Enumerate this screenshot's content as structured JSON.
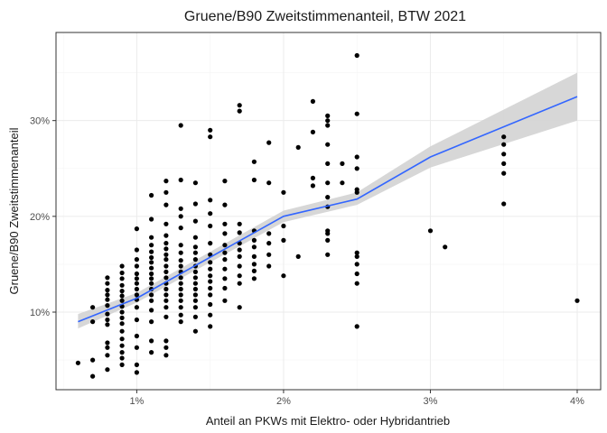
{
  "chart_data": {
    "type": "scatter",
    "title": "Gruene/B90 Zweitstimmenanteil, BTW 2021",
    "xlabel": "Anteil an PKWs mit Elektro- oder Hybridantrieb",
    "ylabel": "Gruene/B90 Zweitstimmenanteil",
    "xlim": [
      0.0045,
      0.0416
    ],
    "ylim": [
      0.019,
      0.392
    ],
    "xticks": [
      {
        "value": 0.01,
        "label": "1%"
      },
      {
        "value": 0.02,
        "label": "2%"
      },
      {
        "value": 0.03,
        "label": "3%"
      },
      {
        "value": 0.04,
        "label": "4%"
      }
    ],
    "yticks": [
      {
        "value": 0.1,
        "label": "10%"
      },
      {
        "value": 0.2,
        "label": "20%"
      },
      {
        "value": 0.3,
        "label": "30%"
      }
    ],
    "grid": true,
    "colors": {
      "points": "#000000",
      "trend_line": "#3366FF",
      "confidence_band": "#d3d3d3",
      "grid_major": "#ebebeb",
      "grid_minor": "#f5f5f5",
      "panel_border": "#333333"
    },
    "trend": {
      "method": "linear",
      "x": [
        0.006,
        0.01,
        0.02,
        0.025,
        0.03,
        0.04
      ],
      "y": [
        0.09,
        0.1145,
        0.2,
        0.218,
        0.262,
        0.325
      ],
      "ci_low": [
        0.083,
        0.11,
        0.194,
        0.212,
        0.251,
        0.3
      ],
      "ci_high": [
        0.098,
        0.12,
        0.206,
        0.225,
        0.273,
        0.35
      ]
    },
    "points": [
      [
        0.006,
        0.047
      ],
      [
        0.007,
        0.033
      ],
      [
        0.007,
        0.05
      ],
      [
        0.007,
        0.09
      ],
      [
        0.007,
        0.105
      ],
      [
        0.008,
        0.04
      ],
      [
        0.008,
        0.055
      ],
      [
        0.008,
        0.063
      ],
      [
        0.008,
        0.068
      ],
      [
        0.008,
        0.087
      ],
      [
        0.008,
        0.092
      ],
      [
        0.008,
        0.098
      ],
      [
        0.008,
        0.107
      ],
      [
        0.008,
        0.113
      ],
      [
        0.008,
        0.118
      ],
      [
        0.008,
        0.123
      ],
      [
        0.008,
        0.13
      ],
      [
        0.008,
        0.136
      ],
      [
        0.009,
        0.045
      ],
      [
        0.009,
        0.052
      ],
      [
        0.009,
        0.058
      ],
      [
        0.009,
        0.065
      ],
      [
        0.009,
        0.072
      ],
      [
        0.009,
        0.08
      ],
      [
        0.009,
        0.088
      ],
      [
        0.009,
        0.094
      ],
      [
        0.009,
        0.1
      ],
      [
        0.009,
        0.106
      ],
      [
        0.009,
        0.112
      ],
      [
        0.009,
        0.117
      ],
      [
        0.009,
        0.122
      ],
      [
        0.009,
        0.128
      ],
      [
        0.009,
        0.135
      ],
      [
        0.009,
        0.141
      ],
      [
        0.009,
        0.148
      ],
      [
        0.01,
        0.037
      ],
      [
        0.01,
        0.045
      ],
      [
        0.01,
        0.063
      ],
      [
        0.01,
        0.075
      ],
      [
        0.01,
        0.092
      ],
      [
        0.01,
        0.105
      ],
      [
        0.01,
        0.113
      ],
      [
        0.01,
        0.118
      ],
      [
        0.01,
        0.124
      ],
      [
        0.01,
        0.13
      ],
      [
        0.01,
        0.135
      ],
      [
        0.01,
        0.14
      ],
      [
        0.01,
        0.148
      ],
      [
        0.01,
        0.155
      ],
      [
        0.01,
        0.165
      ],
      [
        0.01,
        0.187
      ],
      [
        0.011,
        0.058
      ],
      [
        0.011,
        0.07
      ],
      [
        0.011,
        0.09
      ],
      [
        0.011,
        0.102
      ],
      [
        0.011,
        0.112
      ],
      [
        0.011,
        0.118
      ],
      [
        0.011,
        0.124
      ],
      [
        0.011,
        0.13
      ],
      [
        0.011,
        0.135
      ],
      [
        0.011,
        0.14
      ],
      [
        0.011,
        0.146
      ],
      [
        0.011,
        0.152
      ],
      [
        0.011,
        0.157
      ],
      [
        0.011,
        0.163
      ],
      [
        0.011,
        0.17
      ],
      [
        0.011,
        0.178
      ],
      [
        0.011,
        0.197
      ],
      [
        0.011,
        0.222
      ],
      [
        0.012,
        0.055
      ],
      [
        0.012,
        0.063
      ],
      [
        0.012,
        0.07
      ],
      [
        0.012,
        0.095
      ],
      [
        0.012,
        0.105
      ],
      [
        0.012,
        0.112
      ],
      [
        0.012,
        0.118
      ],
      [
        0.012,
        0.124
      ],
      [
        0.012,
        0.13
      ],
      [
        0.012,
        0.136
      ],
      [
        0.012,
        0.142
      ],
      [
        0.012,
        0.148
      ],
      [
        0.012,
        0.155
      ],
      [
        0.012,
        0.16
      ],
      [
        0.012,
        0.166
      ],
      [
        0.012,
        0.172
      ],
      [
        0.012,
        0.18
      ],
      [
        0.012,
        0.192
      ],
      [
        0.012,
        0.212
      ],
      [
        0.012,
        0.225
      ],
      [
        0.012,
        0.237
      ],
      [
        0.013,
        0.09
      ],
      [
        0.013,
        0.097
      ],
      [
        0.013,
        0.105
      ],
      [
        0.013,
        0.112
      ],
      [
        0.013,
        0.118
      ],
      [
        0.013,
        0.124
      ],
      [
        0.013,
        0.13
      ],
      [
        0.013,
        0.136
      ],
      [
        0.013,
        0.142
      ],
      [
        0.013,
        0.148
      ],
      [
        0.013,
        0.154
      ],
      [
        0.013,
        0.162
      ],
      [
        0.013,
        0.17
      ],
      [
        0.013,
        0.188
      ],
      [
        0.013,
        0.2
      ],
      [
        0.013,
        0.208
      ],
      [
        0.013,
        0.238
      ],
      [
        0.013,
        0.295
      ],
      [
        0.014,
        0.08
      ],
      [
        0.014,
        0.095
      ],
      [
        0.014,
        0.105
      ],
      [
        0.014,
        0.112
      ],
      [
        0.014,
        0.118
      ],
      [
        0.014,
        0.124
      ],
      [
        0.014,
        0.13
      ],
      [
        0.014,
        0.136
      ],
      [
        0.014,
        0.142
      ],
      [
        0.014,
        0.148
      ],
      [
        0.014,
        0.155
      ],
      [
        0.014,
        0.162
      ],
      [
        0.014,
        0.168
      ],
      [
        0.014,
        0.178
      ],
      [
        0.014,
        0.195
      ],
      [
        0.014,
        0.213
      ],
      [
        0.014,
        0.235
      ],
      [
        0.015,
        0.085
      ],
      [
        0.015,
        0.097
      ],
      [
        0.015,
        0.108
      ],
      [
        0.015,
        0.118
      ],
      [
        0.015,
        0.125
      ],
      [
        0.015,
        0.132
      ],
      [
        0.015,
        0.138
      ],
      [
        0.015,
        0.145
      ],
      [
        0.015,
        0.152
      ],
      [
        0.015,
        0.16
      ],
      [
        0.015,
        0.172
      ],
      [
        0.015,
        0.19
      ],
      [
        0.015,
        0.203
      ],
      [
        0.015,
        0.217
      ],
      [
        0.015,
        0.283
      ],
      [
        0.015,
        0.29
      ],
      [
        0.016,
        0.112
      ],
      [
        0.016,
        0.125
      ],
      [
        0.016,
        0.135
      ],
      [
        0.016,
        0.145
      ],
      [
        0.016,
        0.155
      ],
      [
        0.016,
        0.162
      ],
      [
        0.016,
        0.17
      ],
      [
        0.016,
        0.182
      ],
      [
        0.016,
        0.192
      ],
      [
        0.016,
        0.212
      ],
      [
        0.016,
        0.237
      ],
      [
        0.017,
        0.105
      ],
      [
        0.017,
        0.13
      ],
      [
        0.017,
        0.138
      ],
      [
        0.017,
        0.148
      ],
      [
        0.017,
        0.158
      ],
      [
        0.017,
        0.165
      ],
      [
        0.017,
        0.172
      ],
      [
        0.017,
        0.183
      ],
      [
        0.017,
        0.192
      ],
      [
        0.017,
        0.31
      ],
      [
        0.017,
        0.316
      ],
      [
        0.018,
        0.135
      ],
      [
        0.018,
        0.143
      ],
      [
        0.018,
        0.15
      ],
      [
        0.018,
        0.158
      ],
      [
        0.018,
        0.168
      ],
      [
        0.018,
        0.175
      ],
      [
        0.018,
        0.185
      ],
      [
        0.018,
        0.238
      ],
      [
        0.018,
        0.257
      ],
      [
        0.019,
        0.148
      ],
      [
        0.019,
        0.16
      ],
      [
        0.019,
        0.172
      ],
      [
        0.019,
        0.182
      ],
      [
        0.019,
        0.235
      ],
      [
        0.019,
        0.277
      ],
      [
        0.02,
        0.138
      ],
      [
        0.02,
        0.175
      ],
      [
        0.02,
        0.19
      ],
      [
        0.02,
        0.225
      ],
      [
        0.021,
        0.158
      ],
      [
        0.021,
        0.272
      ],
      [
        0.022,
        0.232
      ],
      [
        0.022,
        0.24
      ],
      [
        0.022,
        0.288
      ],
      [
        0.022,
        0.32
      ],
      [
        0.023,
        0.16
      ],
      [
        0.023,
        0.175
      ],
      [
        0.023,
        0.182
      ],
      [
        0.023,
        0.185
      ],
      [
        0.023,
        0.21
      ],
      [
        0.023,
        0.22
      ],
      [
        0.023,
        0.235
      ],
      [
        0.023,
        0.255
      ],
      [
        0.023,
        0.275
      ],
      [
        0.023,
        0.295
      ],
      [
        0.023,
        0.3
      ],
      [
        0.023,
        0.305
      ],
      [
        0.024,
        0.235
      ],
      [
        0.024,
        0.255
      ],
      [
        0.025,
        0.085
      ],
      [
        0.025,
        0.13
      ],
      [
        0.025,
        0.14
      ],
      [
        0.025,
        0.15
      ],
      [
        0.025,
        0.158
      ],
      [
        0.025,
        0.162
      ],
      [
        0.025,
        0.225
      ],
      [
        0.025,
        0.228
      ],
      [
        0.025,
        0.25
      ],
      [
        0.025,
        0.262
      ],
      [
        0.025,
        0.307
      ],
      [
        0.025,
        0.368
      ],
      [
        0.03,
        0.185
      ],
      [
        0.031,
        0.168
      ],
      [
        0.035,
        0.213
      ],
      [
        0.035,
        0.245
      ],
      [
        0.035,
        0.255
      ],
      [
        0.035,
        0.265
      ],
      [
        0.035,
        0.275
      ],
      [
        0.035,
        0.283
      ],
      [
        0.04,
        0.112
      ]
    ]
  }
}
